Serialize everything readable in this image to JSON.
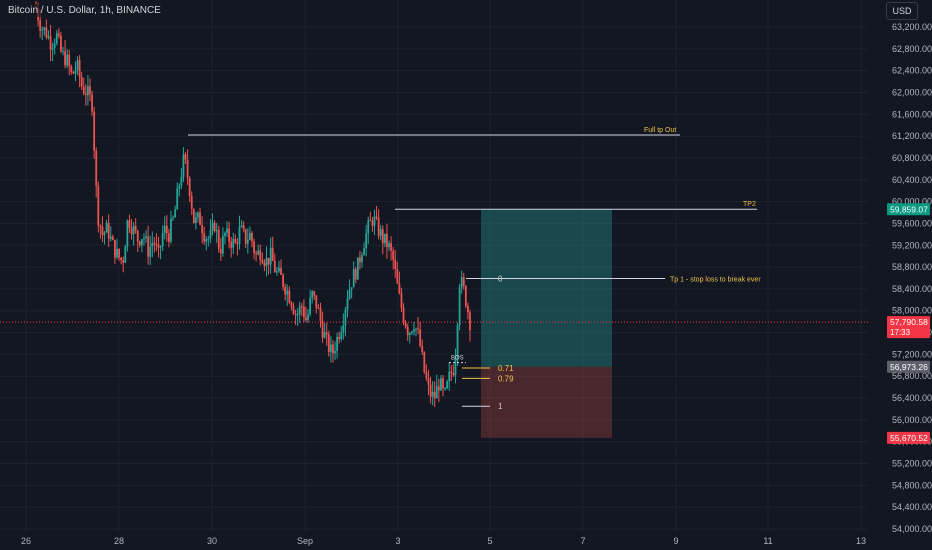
{
  "header": {
    "symbol_title": "Bitcoin / U.S. Dollar, 1h, BINANCE",
    "currency_button": "USD"
  },
  "colors": {
    "background": "#131722",
    "grid": "#1e222d",
    "up_candle": "#26a69a",
    "down_candle": "#ef5350",
    "target_zone": "rgba(38,166,154,0.35)",
    "stop_zone": "rgba(239,83,80,0.25)",
    "annotation_text": "#f0c24b",
    "current_price": "#f23645",
    "target_badge": "#089981",
    "stop_badge": "#f23645",
    "gray_badge": "#5d606b"
  },
  "chart_data": {
    "type": "candlestick",
    "symbol": "Bitcoin / U.S. Dollar",
    "interval": "1h",
    "exchange": "BINANCE",
    "ylim": [
      53800,
      63600
    ],
    "y_ticks": [
      54000,
      54400,
      54800,
      55200,
      55600,
      56000,
      56400,
      56800,
      57200,
      57600,
      58000,
      58400,
      58800,
      59200,
      59600,
      60000,
      60400,
      60800,
      61200,
      61600,
      62000,
      62400,
      62800,
      63200
    ],
    "y_tick_labels": [
      "54,000.00",
      "54,400.00",
      "54,800.00",
      "55,200.00",
      "55,600.00",
      "56,000.00",
      "56,400.00",
      "56,800.00",
      "57,200.00",
      "57,600.00",
      "58,000.00",
      "58,400.00",
      "58,800.00",
      "59,200.00",
      "59,600.00",
      "60,000.00",
      "60,400.00",
      "60,800.00",
      "61,200.00",
      "61,600.00",
      "62,000.00",
      "62,400.00",
      "62,800.00",
      "63,200.00"
    ],
    "x_tick_labels": [
      "26",
      "28",
      "30",
      "Sep",
      "3",
      "5",
      "7",
      "9",
      "11",
      "13"
    ],
    "grid": true,
    "price_badges": [
      {
        "label": "59,859.07",
        "value": 59859.07,
        "kind": "target"
      },
      {
        "label": "57,790.58",
        "value": 57790.58,
        "kind": "current",
        "countdown": "17:33"
      },
      {
        "label": "56,973.26",
        "value": 56973.26,
        "kind": "gray"
      },
      {
        "label": "55,670.52",
        "value": 55670.52,
        "kind": "stop"
      }
    ],
    "annotations": [
      {
        "text": "Full tp Out",
        "value": 61220
      },
      {
        "text": "TP2",
        "value": 59860
      },
      {
        "text": "Tp 1 - stop loss to break ever",
        "value": 58590
      }
    ],
    "fib_levels": [
      {
        "label": "0",
        "value": 58590
      },
      {
        "label": "0.71",
        "value": 56950
      },
      {
        "label": "0.79",
        "value": 56760
      },
      {
        "label": "1",
        "value": 56250
      }
    ],
    "bos_label": "BOS",
    "position": {
      "entry": 56973.26,
      "target": 59859.07,
      "stop": 55670.52
    },
    "price_path": [
      63550,
      63200,
      63100,
      62900,
      63050,
      62700,
      62600,
      62300,
      62500,
      62100,
      62000,
      61800,
      59800,
      59400,
      59500,
      59200,
      59000,
      58900,
      59700,
      59500,
      59300,
      59400,
      59100,
      59300,
      59000,
      59500,
      59400,
      59700,
      60300,
      60800,
      60300,
      59600,
      59700,
      59400,
      59300,
      59600,
      59100,
      59400,
      59300,
      59200,
      59500,
      59300,
      59400,
      59000,
      59100,
      58900,
      59000,
      58700,
      58600,
      58400,
      58200,
      57900,
      58100,
      57800,
      58300,
      58100,
      57700,
      57400,
      57200,
      57500,
      57800,
      58300,
      58600,
      58800,
      59200,
      59500,
      59700,
      59500,
      59300,
      59200,
      58900,
      58300,
      57900,
      57600,
      57800,
      57500,
      56900,
      56500,
      56400,
      56700,
      56400,
      56800,
      57000,
      58600,
      58300,
      57800
    ]
  }
}
